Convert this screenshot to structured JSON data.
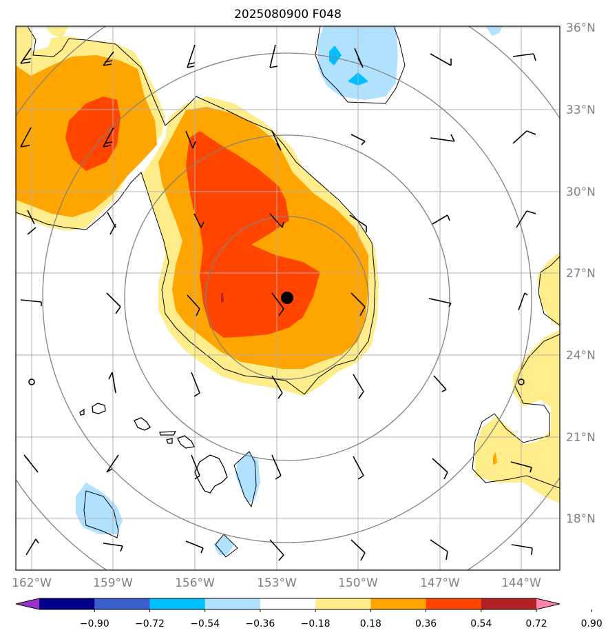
{
  "title": "2025080900 F048",
  "latitude_labels": [
    "36°N",
    "33°N",
    "30°N",
    "27°N",
    "24°N",
    "21°N",
    "18°N"
  ],
  "longitude_labels": [
    "162°W",
    "159°W",
    "156°W",
    "153°W",
    "150°W",
    "147°W",
    "144°W"
  ],
  "colorbar": {
    "labels": [
      "−0.90",
      "−0.72",
      "−0.54",
      "−0.36",
      "−0.18",
      "0.18",
      "0.36",
      "0.54",
      "0.72",
      "0.90"
    ],
    "colors": [
      "#9932cc",
      "#00008b",
      "#3a5fcd",
      "#00bfff",
      "#b0e2ff",
      "#ffffff",
      "#ffec8b",
      "#ffa500",
      "#ff4500",
      "#b22222",
      "#ff82ab"
    ]
  },
  "fill_colors": {
    "light_yellow": "#ffec8b",
    "orange": "#ffa500",
    "red_orange": "#ff4500",
    "dark_red": "#b22222",
    "light_blue": "#b0e2ff",
    "sky_blue": "#00bfff"
  },
  "storm_center_marker": "black filled circle",
  "range_rings": "gray concentric circles around storm center"
}
